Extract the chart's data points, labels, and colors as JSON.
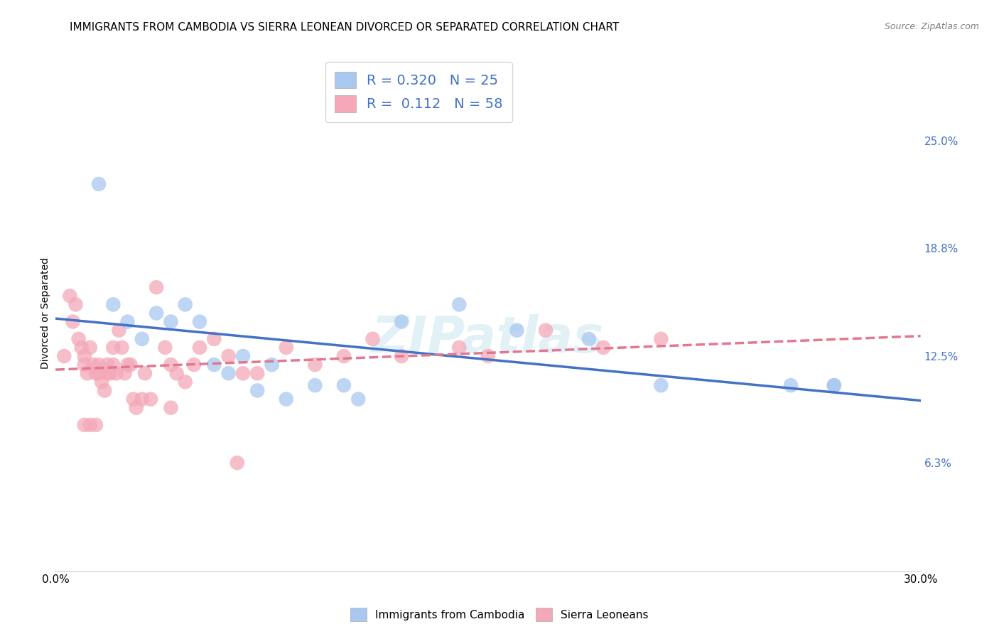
{
  "title": "IMMIGRANTS FROM CAMBODIA VS SIERRA LEONEAN DIVORCED OR SEPARATED CORRELATION CHART",
  "source": "Source: ZipAtlas.com",
  "ylabel": "Divorced or Separated",
  "xlim": [
    0.0,
    0.3
  ],
  "ylim": [
    0.0,
    0.3
  ],
  "ytick_labels": [
    "6.3%",
    "12.5%",
    "18.8%",
    "25.0%"
  ],
  "ytick_values": [
    0.063,
    0.125,
    0.188,
    0.25
  ],
  "xtick_values": [
    0.0,
    0.06,
    0.12,
    0.18,
    0.24,
    0.3
  ],
  "xtick_labels": [
    "0.0%",
    "",
    "",
    "",
    "",
    "30.0%"
  ],
  "legend_entries": [
    {
      "label": "Immigrants from Cambodia",
      "R": "0.320",
      "N": "25",
      "color": "#a8c8f0"
    },
    {
      "label": "Sierra Leoneans",
      "R": "0.112",
      "N": "58",
      "color": "#f4a8b8"
    }
  ],
  "cambodia_x": [
    0.015,
    0.02,
    0.025,
    0.03,
    0.035,
    0.04,
    0.045,
    0.05,
    0.055,
    0.06,
    0.065,
    0.07,
    0.075,
    0.08,
    0.09,
    0.1,
    0.105,
    0.12,
    0.14,
    0.16,
    0.185,
    0.21,
    0.255,
    0.27,
    0.27
  ],
  "cambodia_y": [
    0.225,
    0.155,
    0.145,
    0.135,
    0.15,
    0.145,
    0.155,
    0.145,
    0.12,
    0.115,
    0.125,
    0.105,
    0.12,
    0.1,
    0.108,
    0.108,
    0.1,
    0.145,
    0.155,
    0.14,
    0.135,
    0.108,
    0.108,
    0.108,
    0.108
  ],
  "sierra_x": [
    0.003,
    0.005,
    0.006,
    0.007,
    0.008,
    0.009,
    0.01,
    0.01,
    0.011,
    0.012,
    0.013,
    0.014,
    0.015,
    0.015,
    0.016,
    0.017,
    0.018,
    0.018,
    0.019,
    0.02,
    0.02,
    0.021,
    0.022,
    0.023,
    0.024,
    0.025,
    0.026,
    0.027,
    0.028,
    0.03,
    0.031,
    0.033,
    0.035,
    0.038,
    0.04,
    0.04,
    0.042,
    0.045,
    0.048,
    0.05,
    0.055,
    0.06,
    0.065,
    0.07,
    0.08,
    0.09,
    0.1,
    0.11,
    0.12,
    0.14,
    0.15,
    0.17,
    0.19,
    0.21,
    0.01,
    0.012,
    0.014,
    0.063
  ],
  "sierra_y": [
    0.125,
    0.16,
    0.145,
    0.155,
    0.135,
    0.13,
    0.125,
    0.12,
    0.115,
    0.13,
    0.12,
    0.115,
    0.12,
    0.115,
    0.11,
    0.105,
    0.115,
    0.12,
    0.115,
    0.13,
    0.12,
    0.115,
    0.14,
    0.13,
    0.115,
    0.12,
    0.12,
    0.1,
    0.095,
    0.1,
    0.115,
    0.1,
    0.165,
    0.13,
    0.12,
    0.095,
    0.115,
    0.11,
    0.12,
    0.13,
    0.135,
    0.125,
    0.115,
    0.115,
    0.13,
    0.12,
    0.125,
    0.135,
    0.125,
    0.13,
    0.125,
    0.14,
    0.13,
    0.135,
    0.085,
    0.085,
    0.085,
    0.063
  ],
  "cambodia_line_color": "#4472c4",
  "sierra_line_color": "#e07890",
  "marker_color_cambodia": "#a8c8f0",
  "marker_color_sierra": "#f4a8b8",
  "background_color": "#ffffff",
  "grid_color": "#cccccc",
  "title_fontsize": 11,
  "axis_label_fontsize": 10,
  "tick_fontsize": 11
}
